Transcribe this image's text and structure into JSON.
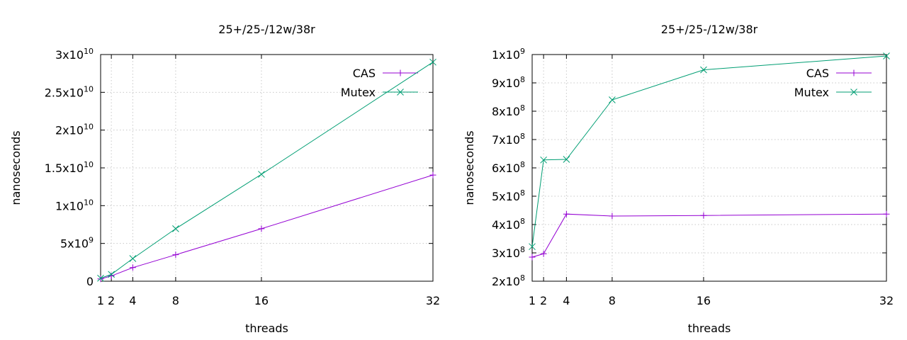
{
  "chart_data": [
    {
      "type": "line",
      "title": "25+/25-/12w/38r",
      "xlabel": "threads",
      "ylabel": "nanoseconds",
      "x": [
        1,
        2,
        4,
        8,
        16,
        32
      ],
      "xticks": [
        "1",
        "2",
        "4",
        "8",
        "16",
        "32"
      ],
      "xlim": [
        1,
        32
      ],
      "ylim": [
        0,
        30000000000
      ],
      "yticks": [
        {
          "value": 0,
          "mantissa": "0",
          "exp": ""
        },
        {
          "value": 5000000000,
          "mantissa": "5x10",
          "exp": "9"
        },
        {
          "value": 10000000000,
          "mantissa": "1x10",
          "exp": "10"
        },
        {
          "value": 15000000000,
          "mantissa": "1.5x10",
          "exp": "10"
        },
        {
          "value": 20000000000,
          "mantissa": "2x10",
          "exp": "10"
        },
        {
          "value": 25000000000,
          "mantissa": "2.5x10",
          "exp": "10"
        },
        {
          "value": 30000000000,
          "mantissa": "3x10",
          "exp": "10"
        }
      ],
      "grid": true,
      "legend": "top-right",
      "series": [
        {
          "name": "CAS",
          "color": "#9400d3",
          "marker": "plus",
          "values": [
            300000000,
            700000000,
            1800000000,
            3500000000,
            6950000000,
            14050000000
          ]
        },
        {
          "name": "Mutex",
          "color": "#009e73",
          "marker": "cross",
          "values": [
            400000000,
            900000000,
            3000000000,
            6950000000,
            14150000000,
            29000000000
          ]
        }
      ]
    },
    {
      "type": "line",
      "title": "25+/25-/12w/38r",
      "xlabel": "threads",
      "ylabel": "nanoseconds",
      "x": [
        1,
        2,
        4,
        8,
        16,
        32
      ],
      "xticks": [
        "1",
        "2",
        "4",
        "8",
        "16",
        "32"
      ],
      "xlim": [
        1,
        32
      ],
      "ylim": [
        200000000,
        1000000000
      ],
      "yticks": [
        {
          "value": 200000000,
          "mantissa": "2x10",
          "exp": "8"
        },
        {
          "value": 300000000,
          "mantissa": "3x10",
          "exp": "8"
        },
        {
          "value": 400000000,
          "mantissa": "4x10",
          "exp": "8"
        },
        {
          "value": 500000000,
          "mantissa": "5x10",
          "exp": "8"
        },
        {
          "value": 600000000,
          "mantissa": "6x10",
          "exp": "8"
        },
        {
          "value": 700000000,
          "mantissa": "7x10",
          "exp": "8"
        },
        {
          "value": 800000000,
          "mantissa": "8x10",
          "exp": "8"
        },
        {
          "value": 900000000,
          "mantissa": "9x10",
          "exp": "8"
        },
        {
          "value": 1000000000,
          "mantissa": "1x10",
          "exp": "9"
        }
      ],
      "grid": true,
      "legend": "top-right",
      "series": [
        {
          "name": "CAS",
          "color": "#9400d3",
          "marker": "plus",
          "values": [
            285000000,
            297000000,
            437000000,
            430000000,
            432000000,
            437000000
          ]
        },
        {
          "name": "Mutex",
          "color": "#009e73",
          "marker": "cross",
          "values": [
            322000000,
            628000000,
            630000000,
            840000000,
            946000000,
            995000000
          ]
        }
      ]
    }
  ]
}
